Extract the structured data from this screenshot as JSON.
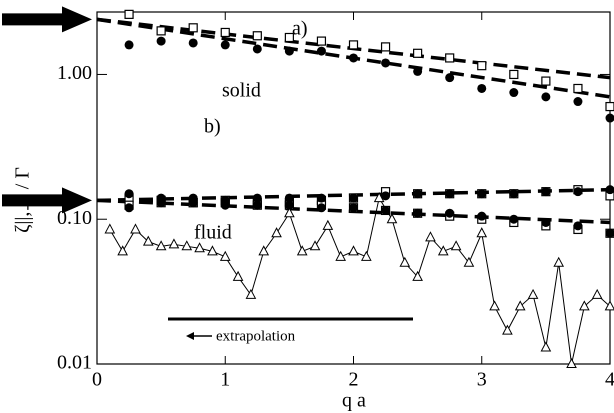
{
  "chart_data": {
    "type": "scatter",
    "x_label": "q a",
    "y_label": "ζ||,⊥ / Γ",
    "annotations": [
      "a)",
      "b)",
      "solid",
      "fluid",
      "extrapolation"
    ],
    "xlim": [
      0,
      4
    ],
    "xticks": [
      0,
      1,
      2,
      3,
      4
    ],
    "ylim": [
      0.01,
      2.7
    ],
    "yscale": "log",
    "yticks": [
      {
        "value": 0.01,
        "label": "0.01"
      },
      {
        "value": 0.1,
        "label": "0.10"
      },
      {
        "value": 1,
        "label": "1.00"
      }
    ],
    "series": [
      {
        "marker": "dashed-line",
        "color": "#000000",
        "x": [
          0,
          4
        ],
        "values": [
          2.4,
          0.95
        ]
      },
      {
        "marker": "dashed-line",
        "color": "#000000",
        "x": [
          0,
          4
        ],
        "values": [
          2.4,
          0.7
        ]
      },
      {
        "marker": "dashed-line",
        "color": "#000000",
        "x": [
          0,
          4
        ],
        "values": [
          0.135,
          0.16
        ]
      },
      {
        "marker": "dashed-line",
        "color": "#000000",
        "x": [
          0,
          4
        ],
        "values": [
          0.135,
          0.095
        ]
      },
      {
        "marker": "open-square",
        "color": "#000000",
        "x": [
          0.25,
          0.5,
          0.75,
          1.0,
          1.25,
          1.5,
          1.75,
          2.0,
          2.25,
          2.5,
          2.75,
          3.0,
          3.25,
          3.5,
          3.75,
          4.0
        ],
        "values": [
          2.6,
          2.0,
          2.1,
          1.95,
          1.85,
          1.8,
          1.7,
          1.6,
          1.55,
          1.4,
          1.3,
          1.15,
          1.0,
          0.9,
          0.8,
          0.6
        ]
      },
      {
        "marker": "filled-circle",
        "color": "#000000",
        "x": [
          0.25,
          0.5,
          0.75,
          1.0,
          1.25,
          1.5,
          1.75,
          2.0,
          2.25,
          2.5,
          2.75,
          3.0,
          3.25,
          3.5,
          3.75,
          4.0
        ],
        "values": [
          1.6,
          1.7,
          1.65,
          1.6,
          1.5,
          1.45,
          1.45,
          1.3,
          1.2,
          1.05,
          0.95,
          0.8,
          0.75,
          0.7,
          0.65,
          0.5
        ]
      },
      {
        "marker": "open-square",
        "color": "#000000",
        "x": [
          0.25,
          0.5,
          0.75,
          1.0,
          1.25,
          1.5,
          1.75,
          2.0,
          2.25,
          2.5,
          2.75,
          3.0,
          3.25,
          3.5,
          3.75,
          4.0
        ],
        "values": [
          0.14,
          0.13,
          0.13,
          0.135,
          0.13,
          0.13,
          0.135,
          0.14,
          0.155,
          0.15,
          0.15,
          0.15,
          0.15,
          0.155,
          0.16,
          0.145
        ]
      },
      {
        "marker": "open-square",
        "color": "#000000",
        "x": [
          0.25,
          0.5,
          0.75,
          1.0,
          1.25,
          1.5,
          1.75,
          2.0,
          2.25,
          2.5,
          2.75,
          3.0,
          3.25,
          3.5,
          3.75,
          4.0
        ],
        "values": [
          0.125,
          0.135,
          0.13,
          0.13,
          0.125,
          0.125,
          0.125,
          0.12,
          0.115,
          0.11,
          0.105,
          0.1,
          0.095,
          0.09,
          0.085,
          0.08
        ]
      },
      {
        "marker": "filled-circle",
        "color": "#000000",
        "x": [
          0.25,
          0.5,
          0.75,
          1.0,
          1.25,
          1.5,
          1.75,
          2.0,
          2.25,
          2.5,
          2.75,
          3.0,
          3.25,
          3.5,
          3.75,
          4.0
        ],
        "values": [
          0.15,
          0.14,
          0.14,
          0.135,
          0.14,
          0.14,
          0.14,
          0.14,
          0.145,
          0.15,
          0.15,
          0.15,
          0.15,
          0.155,
          0.155,
          0.16
        ]
      },
      {
        "marker": "filled-circle",
        "color": "#000000",
        "x": [
          0.25,
          0.5,
          0.75,
          1.0,
          1.25,
          1.5,
          1.75,
          2.0,
          2.25,
          2.5,
          2.75,
          3.0,
          3.25,
          3.5,
          3.75,
          4.0
        ],
        "values": [
          0.12,
          0.13,
          0.13,
          0.125,
          0.125,
          0.125,
          0.12,
          0.12,
          0.115,
          0.11,
          0.11,
          0.105,
          0.1,
          0.095,
          0.09,
          0.08
        ]
      },
      {
        "marker": "open-triangle-line",
        "color": "#000000",
        "x": [
          0.1,
          0.2,
          0.3,
          0.4,
          0.5,
          0.6,
          0.7,
          0.8,
          0.9,
          1.0,
          1.1,
          1.2,
          1.3,
          1.4,
          1.5,
          1.6,
          1.7,
          1.8,
          1.9,
          2.0,
          2.1,
          2.2,
          2.3,
          2.4,
          2.5,
          2.6,
          2.7,
          2.8,
          2.9,
          3.0,
          3.1,
          3.2,
          3.3,
          3.4,
          3.5,
          3.6,
          3.7,
          3.8,
          3.9,
          4.0
        ],
        "values": [
          0.085,
          0.06,
          0.085,
          0.07,
          0.065,
          0.067,
          0.065,
          0.063,
          0.06,
          0.055,
          0.04,
          0.03,
          0.06,
          0.08,
          0.11,
          0.06,
          0.065,
          0.09,
          0.055,
          0.06,
          0.055,
          0.14,
          0.1,
          0.05,
          0.04,
          0.075,
          0.06,
          0.065,
          0.05,
          0.08,
          0.025,
          0.017,
          0.025,
          0.03,
          0.013,
          0.05,
          0.01,
          0.025,
          0.03,
          0.025
        ]
      }
    ]
  }
}
